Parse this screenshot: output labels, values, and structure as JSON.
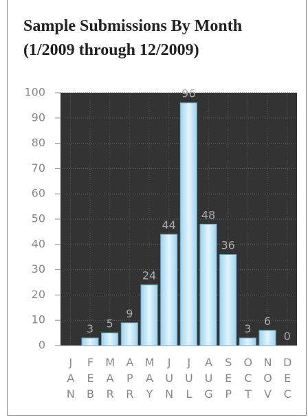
{
  "chart_data": {
    "type": "bar",
    "title": "Sample Submissions By Month",
    "subtitle": "(1/2009 through 12/2009)",
    "categories": [
      "JAN",
      "FEB",
      "MAR",
      "APR",
      "MAY",
      "JUN",
      "JUL",
      "AUG",
      "SEP",
      "OCT",
      "NOV",
      "DEC"
    ],
    "values": [
      null,
      3,
      5,
      9,
      24,
      44,
      96,
      48,
      36,
      3,
      6,
      0
    ],
    "color": "#bfe6f7",
    "ylim": [
      0,
      100
    ],
    "yticks": [
      0,
      10,
      20,
      30,
      40,
      50,
      60,
      70,
      80,
      90,
      100
    ],
    "grid": true
  }
}
